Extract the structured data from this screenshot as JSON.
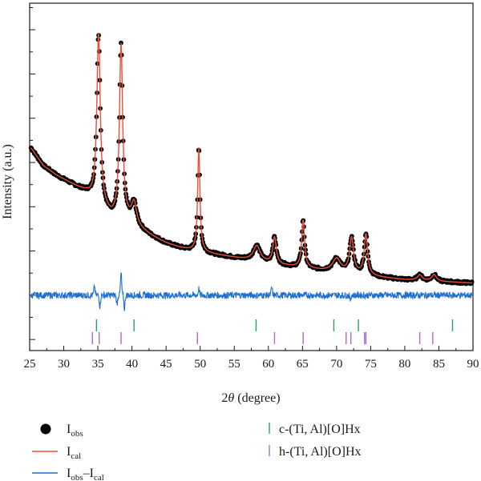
{
  "chart_data": {
    "type": "line",
    "title": "",
    "xlabel_prefix": "2",
    "xlabel_theta": "θ",
    "xlabel_suffix": " (degree)",
    "ylabel": "Intensity (a.u.)",
    "xlim": [
      25,
      90
    ],
    "ylim": [
      -0.25,
      1.32
    ],
    "x_ticks": [
      "25",
      "30",
      "35",
      "40",
      "45",
      "50",
      "55",
      "60",
      "65",
      "70",
      "75",
      "80",
      "85",
      "90"
    ],
    "grid": false,
    "legend_position": "bottom",
    "colors": {
      "obs": "#000000",
      "cal": "#e8503a",
      "diff": "#1f6fd1",
      "c_phase": "#2aa05a",
      "h_phase": "#a96bd6"
    },
    "background": {
      "x": [
        25.2,
        27,
        29,
        31,
        32.5,
        33.4,
        34,
        37,
        39.5,
        41,
        43,
        45,
        47,
        49,
        52,
        55,
        57,
        62,
        67,
        71,
        75,
        80,
        85,
        90
      ],
      "y": [
        0.665,
        0.585,
        0.54,
        0.505,
        0.478,
        0.46,
        0.44,
        0.35,
        0.33,
        0.3,
        0.265,
        0.235,
        0.215,
        0.2,
        0.185,
        0.17,
        0.16,
        0.135,
        0.115,
        0.1,
        0.085,
        0.07,
        0.062,
        0.055
      ]
    },
    "peaks": [
      {
        "pos": 35.1,
        "height": 0.77,
        "width": 0.3
      },
      {
        "pos": 38.4,
        "height": 0.79,
        "width": 0.28
      },
      {
        "pos": 40.3,
        "height": 0.1,
        "width": 0.45
      },
      {
        "pos": 49.8,
        "height": 0.47,
        "width": 0.2
      },
      {
        "pos": 58.3,
        "height": 0.07,
        "width": 0.6
      },
      {
        "pos": 60.9,
        "height": 0.12,
        "width": 0.3
      },
      {
        "pos": 65.1,
        "height": 0.215,
        "width": 0.25
      },
      {
        "pos": 70.0,
        "height": 0.06,
        "width": 0.7
      },
      {
        "pos": 72.2,
        "height": 0.16,
        "width": 0.35
      },
      {
        "pos": 74.3,
        "height": 0.185,
        "width": 0.3
      },
      {
        "pos": 82.2,
        "height": 0.025,
        "width": 0.4
      },
      {
        "pos": 84.3,
        "height": 0.03,
        "width": 0.4
      }
    ],
    "difference_features": [
      {
        "pos": 34.5,
        "amp": 0.04
      },
      {
        "pos": 35.3,
        "amp": -0.05
      },
      {
        "pos": 38.4,
        "amp": 0.1
      },
      {
        "pos": 37.8,
        "amp": -0.04
      },
      {
        "pos": 38.9,
        "amp": -0.06
      },
      {
        "pos": 49.8,
        "amp": 0.03
      },
      {
        "pos": 60.5,
        "amp": 0.035
      },
      {
        "pos": 72.0,
        "amp": -0.02
      }
    ],
    "reflections": {
      "c_phase": [
        34.8,
        40.3,
        58.2,
        69.6,
        73.2,
        87.0
      ],
      "h_phase": [
        34.2,
        35.2,
        38.4,
        49.6,
        60.9,
        65.1,
        71.4,
        72.1,
        74.1,
        74.3,
        82.2,
        84.1
      ]
    },
    "legend": [
      {
        "key": "obs",
        "text": "I",
        "sub": "obs",
        "symbol": "dot"
      },
      {
        "key": "cal",
        "text": "I",
        "sub": "cal",
        "symbol": "line"
      },
      {
        "key": "diff",
        "text": "I",
        "sub": "obs",
        "text2": "–I",
        "sub2": "cal",
        "symbol": "line"
      },
      {
        "key": "c_phase",
        "text": "c-(Ti, Al)[O]Hx",
        "symbol": "tick"
      },
      {
        "key": "h_phase",
        "text": "h-(Ti, Al)[O]Hx",
        "symbol": "tick"
      }
    ]
  }
}
